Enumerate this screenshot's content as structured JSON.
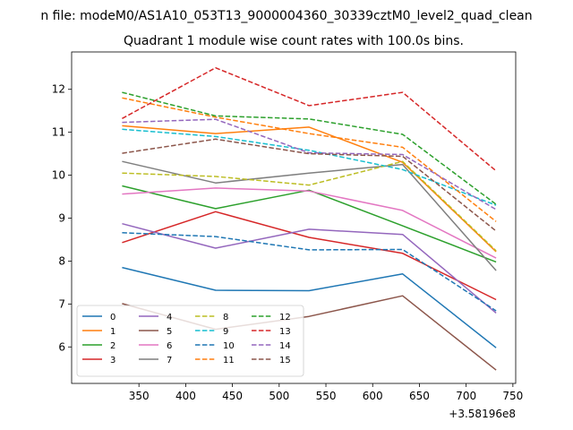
{
  "chart_data": {
    "type": "line",
    "suptitle": "n file: modeM0/AS1A10_053T13_9000004360_30339cztM0_level2_quad_clean",
    "title": "Quadrant 1 module wise count rates with 100.0s bins.",
    "xlabel": "",
    "ylabel": "",
    "x_offset_label": "+3.58196e8",
    "x": [
      332,
      432,
      532,
      632,
      732
    ],
    "xlim": [
      278,
      753
    ],
    "ylim": [
      5.15,
      12.87
    ],
    "xticks": [
      350,
      400,
      450,
      500,
      550,
      600,
      650,
      700,
      750
    ],
    "yticks": [
      6,
      7,
      8,
      9,
      10,
      11,
      12
    ],
    "legend_position": "lower-left",
    "legend_columns": 4,
    "series": [
      {
        "name": "0",
        "color": "#1f77b4",
        "style": "solid",
        "values": [
          7.85,
          7.32,
          7.31,
          7.7,
          5.98
        ]
      },
      {
        "name": "1",
        "color": "#ff7f0e",
        "style": "solid",
        "values": [
          11.15,
          10.97,
          11.12,
          10.3,
          8.22
        ]
      },
      {
        "name": "2",
        "color": "#2ca02c",
        "style": "solid",
        "values": [
          9.75,
          9.22,
          9.65,
          8.82,
          7.98
        ]
      },
      {
        "name": "3",
        "color": "#d62728",
        "style": "solid",
        "values": [
          8.43,
          9.15,
          8.55,
          8.18,
          7.1
        ]
      },
      {
        "name": "4",
        "color": "#9467bd",
        "style": "solid",
        "values": [
          8.87,
          8.3,
          8.74,
          8.62,
          6.79
        ]
      },
      {
        "name": "5",
        "color": "#8c564b",
        "style": "solid",
        "values": [
          7.01,
          6.41,
          6.71,
          7.19,
          5.46
        ]
      },
      {
        "name": "6",
        "color": "#e377c2",
        "style": "solid",
        "values": [
          9.56,
          9.7,
          9.63,
          9.18,
          8.07
        ]
      },
      {
        "name": "7",
        "color": "#7f7f7f",
        "style": "solid",
        "values": [
          10.32,
          9.82,
          10.05,
          10.25,
          7.78
        ]
      },
      {
        "name": "8",
        "color": "#bcbd22",
        "style": "dashed",
        "values": [
          10.05,
          9.97,
          9.77,
          10.32,
          8.24
        ]
      },
      {
        "name": "9",
        "color": "#17becf",
        "style": "dashed",
        "values": [
          11.07,
          10.9,
          10.58,
          10.13,
          9.3
        ]
      },
      {
        "name": "10",
        "color": "#1f77b4",
        "style": "dashed",
        "values": [
          8.66,
          8.57,
          8.26,
          8.27,
          6.84
        ]
      },
      {
        "name": "11",
        "color": "#ff7f0e",
        "style": "dashed",
        "values": [
          11.8,
          11.35,
          10.97,
          10.65,
          8.92
        ]
      },
      {
        "name": "12",
        "color": "#2ca02c",
        "style": "dashed",
        "values": [
          11.93,
          11.38,
          11.31,
          10.95,
          9.32
        ]
      },
      {
        "name": "13",
        "color": "#d62728",
        "style": "dashed",
        "values": [
          11.32,
          12.5,
          11.62,
          11.93,
          10.1
        ]
      },
      {
        "name": "14",
        "color": "#9467bd",
        "style": "dashed",
        "values": [
          11.23,
          11.3,
          10.52,
          10.48,
          9.2
        ]
      },
      {
        "name": "15",
        "color": "#8c564b",
        "style": "dashed",
        "values": [
          10.51,
          10.84,
          10.5,
          10.44,
          8.7
        ]
      }
    ]
  }
}
